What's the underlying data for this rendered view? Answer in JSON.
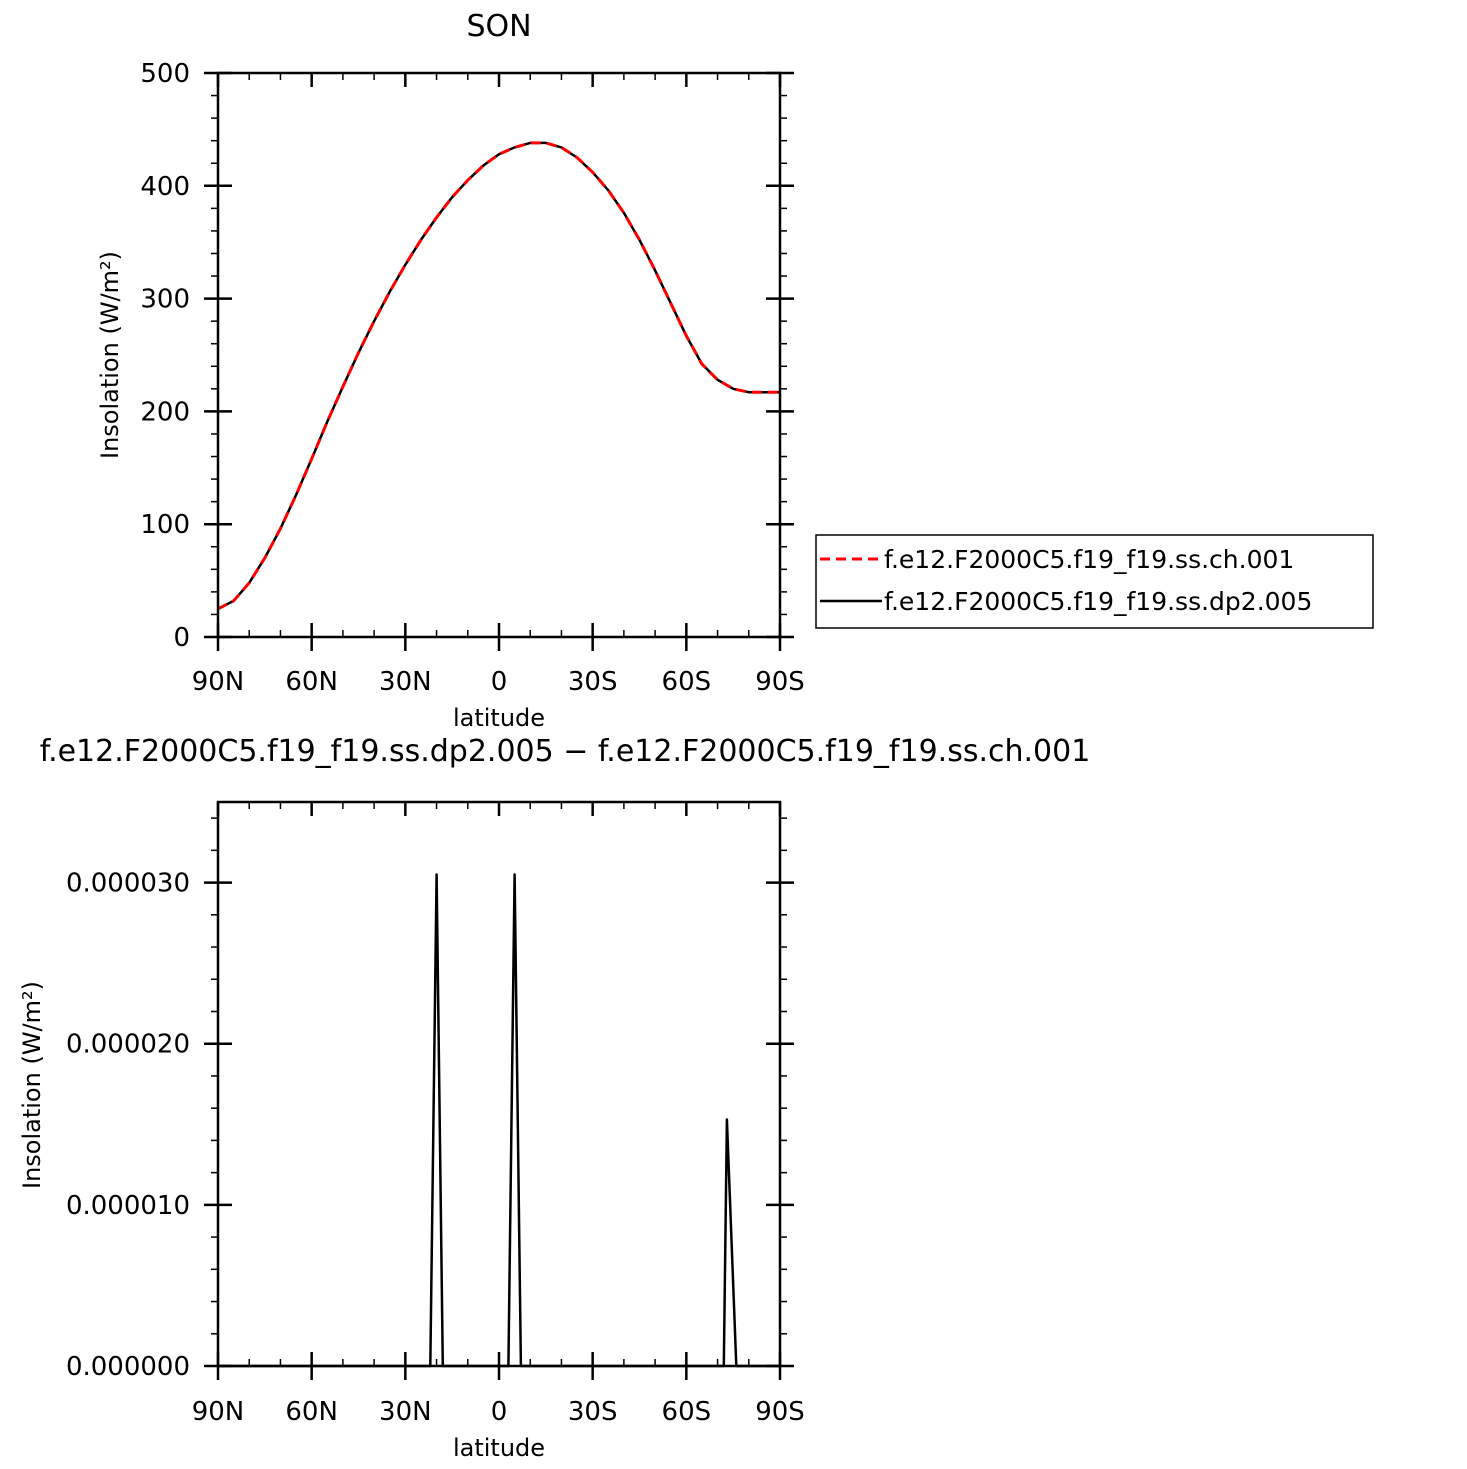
{
  "chart_data": [
    {
      "type": "line",
      "title": "SON",
      "xlabel": "latitude",
      "ylabel": "Insolation (W/m²)",
      "xlim": [
        -90,
        90
      ],
      "ylim": [
        0,
        500
      ],
      "x_ticks": [
        -90,
        -60,
        -30,
        0,
        30,
        60,
        90
      ],
      "x_tick_labels": [
        "90N",
        "60N",
        "30N",
        "0",
        "30S",
        "60S",
        "90S"
      ],
      "y_ticks": [
        0,
        100,
        200,
        300,
        400,
        500
      ],
      "y_tick_labels": [
        "0",
        "100",
        "200",
        "300",
        "400",
        "500"
      ],
      "legend_position": "right",
      "series": [
        {
          "name": "f.e12.F2000C5.f19_f19.ss.ch.001",
          "color": "#ff0000",
          "dash": "dashed",
          "x": [
            -90,
            -85,
            -80,
            -75,
            -70,
            -65,
            -60,
            -55,
            -50,
            -45,
            -40,
            -35,
            -30,
            -25,
            -20,
            -15,
            -10,
            -5,
            0,
            5,
            10,
            15,
            20,
            25,
            30,
            35,
            40,
            45,
            50,
            55,
            60,
            65,
            70,
            75,
            80,
            85,
            90
          ],
          "y": [
            25,
            32,
            48,
            70,
            96,
            126,
            158,
            191,
            222,
            252,
            280,
            306,
            330,
            352,
            372,
            390,
            405,
            418,
            428,
            434,
            438,
            438,
            434,
            425,
            412,
            396,
            376,
            352,
            325,
            296,
            267,
            242,
            228,
            220,
            217,
            217,
            217
          ]
        },
        {
          "name": "f.e12.F2000C5.f19_f19.ss.dp2.005",
          "color": "#000000",
          "dash": "solid",
          "x": [
            -90,
            -85,
            -80,
            -75,
            -70,
            -65,
            -60,
            -55,
            -50,
            -45,
            -40,
            -35,
            -30,
            -25,
            -20,
            -15,
            -10,
            -5,
            0,
            5,
            10,
            15,
            20,
            25,
            30,
            35,
            40,
            45,
            50,
            55,
            60,
            65,
            70,
            75,
            80,
            85,
            90
          ],
          "y": [
            25,
            32,
            48,
            70,
            96,
            126,
            158,
            191,
            222,
            252,
            280,
            306,
            330,
            352,
            372,
            390,
            405,
            418,
            428,
            434,
            438,
            438,
            434,
            425,
            412,
            396,
            376,
            352,
            325,
            296,
            267,
            242,
            228,
            220,
            217,
            217,
            217
          ]
        }
      ]
    },
    {
      "type": "line",
      "title": "f.e12.F2000C5.f19_f19.ss.dp2.005 − f.e12.F2000C5.f19_f19.ss.ch.001",
      "xlabel": "latitude",
      "ylabel": "Insolation (W/m²)",
      "xlim": [
        -90,
        90
      ],
      "ylim": [
        0,
        3.5e-05
      ],
      "x_ticks": [
        -90,
        -60,
        -30,
        0,
        30,
        60,
        90
      ],
      "x_tick_labels": [
        "90N",
        "60N",
        "30N",
        "0",
        "30S",
        "60S",
        "90S"
      ],
      "y_ticks": [
        0,
        1e-05,
        2e-05,
        3e-05
      ],
      "y_tick_labels": [
        "0.000000",
        "0.000010",
        "0.000020",
        "0.000030"
      ],
      "series": [
        {
          "color": "#000000",
          "dash": "solid",
          "x": [
            -90,
            -22,
            -20,
            -18,
            3,
            5,
            7,
            72,
            73,
            76,
            90
          ],
          "y": [
            0,
            0,
            3.05e-05,
            0,
            0,
            3.05e-05,
            0,
            0,
            1.53e-05,
            0,
            0
          ]
        }
      ]
    }
  ]
}
